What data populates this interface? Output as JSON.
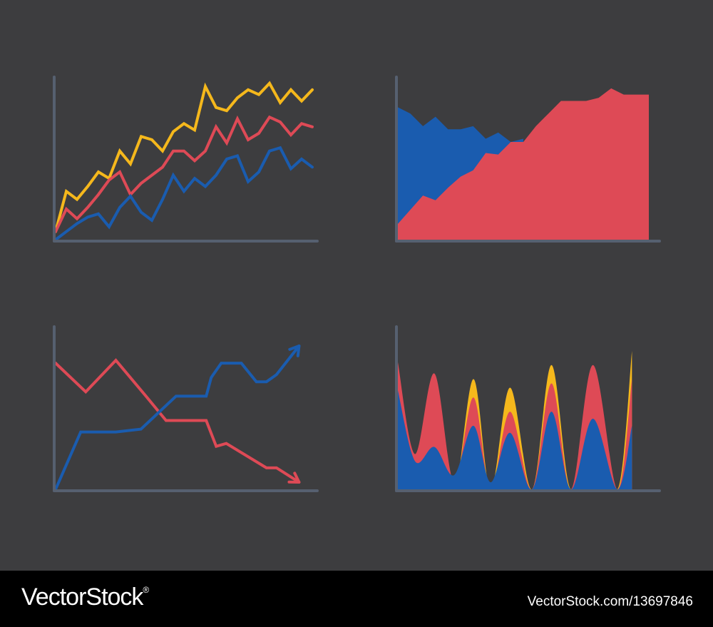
{
  "colors": {
    "background": "#3d3d3f",
    "axis": "#566070",
    "yellow": "#f5b81c",
    "red": "#de4a56",
    "blue": "#1a5caf",
    "footer": "#000000"
  },
  "chart_data": [
    {
      "type": "line",
      "title": "",
      "grid": false,
      "legend": "none",
      "xlim": [
        0,
        24
      ],
      "ylim": [
        0,
        100
      ],
      "series": [
        {
          "color": "#f5b81c",
          "x": [
            0,
            1,
            2,
            3,
            4,
            5,
            6,
            7,
            8,
            9,
            10,
            11,
            12,
            13,
            14,
            15,
            16,
            17,
            18,
            19,
            20,
            21,
            22,
            23,
            24
          ],
          "y": [
            5,
            30,
            25,
            33,
            42,
            38,
            55,
            47,
            64,
            62,
            55,
            67,
            72,
            68,
            95,
            82,
            80,
            88,
            93,
            90,
            97,
            85,
            93,
            86,
            93
          ]
        },
        {
          "color": "#de4a56",
          "x": [
            0,
            1,
            2,
            3,
            4,
            5,
            6,
            7,
            8,
            9,
            10,
            11,
            12,
            13,
            14,
            15,
            16,
            17,
            18,
            19,
            20,
            21,
            22,
            23,
            24
          ],
          "y": [
            5,
            19,
            13,
            20,
            28,
            37,
            42,
            28,
            35,
            40,
            45,
            55,
            55,
            49,
            55,
            70,
            60,
            75,
            62,
            66,
            76,
            73,
            65,
            72,
            70
          ]
        },
        {
          "color": "#1a5caf",
          "x": [
            0,
            1,
            2,
            3,
            4,
            5,
            6,
            7,
            8,
            9,
            10,
            11,
            12,
            13,
            14,
            15,
            16,
            17,
            18,
            19,
            20,
            21,
            22,
            23,
            24
          ],
          "y": [
            0,
            5,
            10,
            14,
            16,
            8,
            20,
            27,
            17,
            12,
            25,
            40,
            30,
            38,
            33,
            40,
            50,
            52,
            36,
            42,
            55,
            57,
            44,
            50,
            45
          ]
        }
      ]
    },
    {
      "type": "area",
      "title": "",
      "grid": false,
      "legend": "none",
      "xlim": [
        0,
        20
      ],
      "ylim": [
        0,
        100
      ],
      "series": [
        {
          "color": "#1a5caf",
          "x": [
            0,
            1,
            2,
            3,
            4,
            5,
            6,
            7,
            8,
            9,
            10
          ],
          "y": [
            84,
            80,
            72,
            78,
            70,
            70,
            72,
            64,
            68,
            62,
            64
          ]
        },
        {
          "color": "#de4a56",
          "x": [
            0,
            2,
            3,
            4,
            5,
            6,
            7,
            8,
            9,
            10,
            11,
            12,
            13,
            14,
            15,
            16,
            17,
            18,
            19,
            20
          ],
          "y": [
            10,
            28,
            25,
            33,
            40,
            44,
            55,
            54,
            62,
            62,
            72,
            80,
            88,
            88,
            88,
            90,
            96,
            92,
            92,
            92
          ]
        }
      ]
    },
    {
      "type": "line",
      "title": "",
      "grid": false,
      "legend": "none",
      "xlim": [
        0,
        100
      ],
      "ylim": [
        0,
        100
      ],
      "series": [
        {
          "color": "#de4a56",
          "x": [
            0,
            12,
            24,
            36,
            44,
            60,
            64,
            68,
            84,
            88,
            97
          ],
          "y": [
            88,
            68,
            90,
            65,
            48,
            48,
            30,
            32,
            15,
            15,
            5
          ]
        },
        {
          "color": "#1a5caf",
          "x": [
            0,
            10,
            24,
            34,
            48,
            60,
            62,
            66,
            74,
            80,
            84,
            88,
            97
          ],
          "y": [
            0,
            40,
            40,
            42,
            65,
            65,
            78,
            88,
            88,
            75,
            75,
            80,
            100
          ]
        }
      ]
    },
    {
      "type": "area",
      "title": "",
      "grid": false,
      "legend": "none",
      "xlim": [
        0,
        100
      ],
      "ylim": [
        0,
        100
      ],
      "series": [
        {
          "color": "#f5b81c",
          "x": [
            0,
            7,
            15,
            23,
            31,
            38,
            46,
            55,
            63,
            71,
            80,
            90,
            96
          ],
          "y": [
            60,
            0,
            70,
            0,
            78,
            0,
            72,
            0,
            88,
            0,
            75,
            0,
            98
          ]
        },
        {
          "color": "#de4a56",
          "x": [
            0,
            7,
            15,
            23,
            31,
            38,
            46,
            55,
            63,
            71,
            80,
            90,
            96
          ],
          "y": [
            90,
            25,
            82,
            5,
            65,
            0,
            55,
            0,
            75,
            0,
            88,
            0,
            78
          ]
        },
        {
          "color": "#1a5caf",
          "x": [
            0,
            7,
            15,
            23,
            31,
            38,
            46,
            55,
            63,
            71,
            80,
            90,
            96
          ],
          "y": [
            70,
            20,
            30,
            10,
            45,
            5,
            40,
            0,
            55,
            0,
            50,
            0,
            45
          ]
        }
      ]
    }
  ],
  "footer": {
    "brand": "VectorStock",
    "reg": "®",
    "image_id": "VectorStock.com/13697846"
  }
}
